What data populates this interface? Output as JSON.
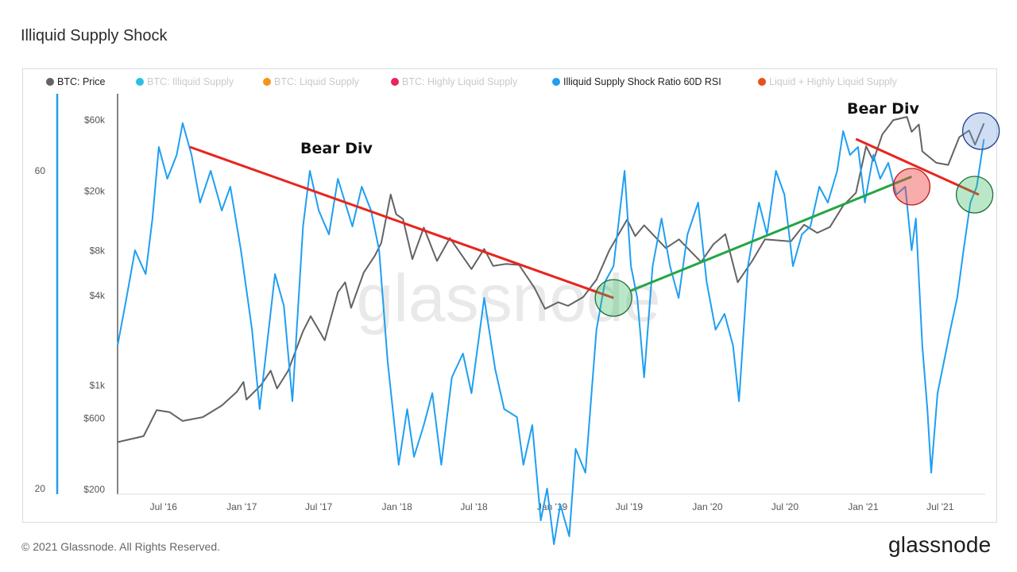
{
  "title": "Illiquid Supply Shock",
  "legend": [
    {
      "label": "BTC: Price",
      "color": "#636363",
      "active": true
    },
    {
      "label": "BTC: Illiquid Supply",
      "color": "#29c0e6",
      "active": false
    },
    {
      "label": "BTC: Liquid Supply",
      "color": "#f7931a",
      "active": false
    },
    {
      "label": "BTC: Highly Liquid Supply",
      "color": "#e8255c",
      "active": false
    },
    {
      "label": "Illiquid Supply Shock Ratio 60D RSI",
      "color": "#1e9ff2",
      "active": true
    },
    {
      "label": "Liquid + Highly Liquid Supply",
      "color": "#e8501b",
      "active": false
    }
  ],
  "watermark": "glassnode",
  "footer": {
    "copyright": "© 2021 Glassnode. All Rights Reserved.",
    "brand": "glassnode"
  },
  "annotations": {
    "bear_div_1": "Bear Div",
    "bear_div_2": "Bear Div"
  },
  "chart_data": {
    "type": "line",
    "x_ticks": [
      "Jul '16",
      "Jan '17",
      "Jul '17",
      "Jan '18",
      "Jul '18",
      "Jan '19",
      "Jul '19",
      "Jan '20",
      "Jul '20",
      "Jan '21",
      "Jul '21"
    ],
    "x_range": [
      "2016-03-15",
      "2021-10-15"
    ],
    "y_left_price": {
      "scale": "log",
      "ticks": [
        {
          "label": "$60k",
          "value": 60000
        },
        {
          "label": "$20k",
          "value": 20000
        },
        {
          "label": "$8k",
          "value": 8000
        },
        {
          "label": "$4k",
          "value": 4000
        },
        {
          "label": "$1k",
          "value": 1000
        },
        {
          "label": "$600",
          "value": 600
        },
        {
          "label": "$200",
          "value": 200
        }
      ],
      "range": [
        200,
        90000
      ]
    },
    "y_left_rsi": {
      "ticks": [
        {
          "label": "60",
          "value": 60
        },
        {
          "label": "20",
          "value": 20
        }
      ]
    },
    "series": [
      {
        "name": "BTC: Price",
        "color": "#636363",
        "axis": "price",
        "points": [
          [
            "2016-03-15",
            415
          ],
          [
            "2016-05-15",
            455
          ],
          [
            "2016-06-15",
            680
          ],
          [
            "2016-07-15",
            660
          ],
          [
            "2016-08-15",
            575
          ],
          [
            "2016-10-01",
            610
          ],
          [
            "2016-11-15",
            730
          ],
          [
            "2016-12-20",
            900
          ],
          [
            "2017-01-05",
            1050
          ],
          [
            "2017-01-12",
            800
          ],
          [
            "2017-02-15",
            1000
          ],
          [
            "2017-03-10",
            1250
          ],
          [
            "2017-03-25",
            950
          ],
          [
            "2017-04-20",
            1250
          ],
          [
            "2017-05-25",
            2300
          ],
          [
            "2017-06-12",
            2900
          ],
          [
            "2017-07-15",
            2000
          ],
          [
            "2017-08-15",
            4200
          ],
          [
            "2017-09-01",
            4900
          ],
          [
            "2017-09-15",
            3300
          ],
          [
            "2017-10-15",
            5700
          ],
          [
            "2017-11-10",
            7400
          ],
          [
            "2017-11-25",
            9000
          ],
          [
            "2017-12-17",
            19000
          ],
          [
            "2017-12-30",
            14000
          ],
          [
            "2018-01-15",
            13000
          ],
          [
            "2018-02-06",
            7000
          ],
          [
            "2018-03-05",
            11400
          ],
          [
            "2018-04-05",
            6800
          ],
          [
            "2018-05-05",
            9700
          ],
          [
            "2018-06-25",
            6000
          ],
          [
            "2018-07-25",
            8200
          ],
          [
            "2018-08-15",
            6300
          ],
          [
            "2018-09-15",
            6500
          ],
          [
            "2018-10-15",
            6400
          ],
          [
            "2018-11-20",
            4500
          ],
          [
            "2018-12-15",
            3250
          ],
          [
            "2019-01-15",
            3600
          ],
          [
            "2019-02-07",
            3400
          ],
          [
            "2019-03-15",
            3900
          ],
          [
            "2019-04-15",
            5100
          ],
          [
            "2019-05-15",
            8000
          ],
          [
            "2019-06-26",
            12900
          ],
          [
            "2019-07-15",
            10000
          ],
          [
            "2019-08-05",
            11800
          ],
          [
            "2019-09-25",
            8300
          ],
          [
            "2019-10-26",
            9500
          ],
          [
            "2019-12-17",
            6700
          ],
          [
            "2020-01-15",
            8800
          ],
          [
            "2020-02-12",
            10300
          ],
          [
            "2020-03-12",
            4900
          ],
          [
            "2020-04-15",
            6800
          ],
          [
            "2020-05-15",
            9500
          ],
          [
            "2020-07-15",
            9200
          ],
          [
            "2020-08-15",
            11900
          ],
          [
            "2020-09-15",
            10500
          ],
          [
            "2020-10-15",
            11500
          ],
          [
            "2020-11-15",
            16000
          ],
          [
            "2020-12-15",
            19500
          ],
          [
            "2021-01-08",
            40000
          ],
          [
            "2021-01-25",
            32000
          ],
          [
            "2021-02-15",
            48000
          ],
          [
            "2021-03-13",
            60000
          ],
          [
            "2021-04-14",
            63000
          ],
          [
            "2021-04-25",
            50000
          ],
          [
            "2021-05-12",
            56000
          ],
          [
            "2021-05-20",
            37000
          ],
          [
            "2021-06-22",
            31000
          ],
          [
            "2021-07-20",
            30000
          ],
          [
            "2021-08-15",
            46000
          ],
          [
            "2021-09-07",
            51000
          ],
          [
            "2021-09-21",
            41000
          ],
          [
            "2021-10-12",
            57000
          ]
        ]
      },
      {
        "name": "Illiquid Supply Shock Ratio 60D RSI",
        "color": "#1e9ff2",
        "axis": "rsi",
        "points": [
          [
            "2016-03-15",
            38
          ],
          [
            "2016-04-05",
            44
          ],
          [
            "2016-04-25",
            50
          ],
          [
            "2016-05-20",
            47
          ],
          [
            "2016-06-05",
            54
          ],
          [
            "2016-06-20",
            63
          ],
          [
            "2016-07-10",
            59
          ],
          [
            "2016-08-01",
            62
          ],
          [
            "2016-08-15",
            66
          ],
          [
            "2016-09-05",
            62
          ],
          [
            "2016-09-25",
            56
          ],
          [
            "2016-10-20",
            60
          ],
          [
            "2016-11-15",
            55
          ],
          [
            "2016-12-05",
            58
          ],
          [
            "2016-12-30",
            50
          ],
          [
            "2017-01-25",
            40
          ],
          [
            "2017-02-12",
            30
          ],
          [
            "2017-03-01",
            38
          ],
          [
            "2017-03-20",
            47
          ],
          [
            "2017-04-10",
            43
          ],
          [
            "2017-04-30",
            31
          ],
          [
            "2017-05-25",
            53
          ],
          [
            "2017-06-10",
            60
          ],
          [
            "2017-07-01",
            55
          ],
          [
            "2017-07-25",
            52
          ],
          [
            "2017-08-15",
            59
          ],
          [
            "2017-09-01",
            56
          ],
          [
            "2017-09-18",
            53
          ],
          [
            "2017-10-10",
            58
          ],
          [
            "2017-11-01",
            55
          ],
          [
            "2017-11-20",
            50
          ],
          [
            "2017-12-10",
            36
          ],
          [
            "2018-01-05",
            23
          ],
          [
            "2018-01-25",
            30
          ],
          [
            "2018-02-10",
            24
          ],
          [
            "2018-03-05",
            28
          ],
          [
            "2018-03-25",
            32
          ],
          [
            "2018-04-15",
            23
          ],
          [
            "2018-05-10",
            34
          ],
          [
            "2018-06-05",
            37
          ],
          [
            "2018-06-25",
            32
          ],
          [
            "2018-07-25",
            44
          ],
          [
            "2018-08-20",
            35
          ],
          [
            "2018-09-10",
            30
          ],
          [
            "2018-10-10",
            29
          ],
          [
            "2018-10-25",
            23
          ],
          [
            "2018-11-15",
            28
          ],
          [
            "2018-12-05",
            16
          ],
          [
            "2018-12-20",
            20
          ],
          [
            "2019-01-05",
            13
          ],
          [
            "2019-01-20",
            18
          ],
          [
            "2019-02-10",
            14
          ],
          [
            "2019-02-25",
            25
          ],
          [
            "2019-03-20",
            22
          ],
          [
            "2019-04-15",
            40
          ],
          [
            "2019-05-05",
            46
          ],
          [
            "2019-05-25",
            48
          ],
          [
            "2019-06-20",
            60
          ],
          [
            "2019-07-05",
            48
          ],
          [
            "2019-07-20",
            44
          ],
          [
            "2019-08-05",
            34
          ],
          [
            "2019-08-25",
            48
          ],
          [
            "2019-09-15",
            54
          ],
          [
            "2019-10-05",
            48
          ],
          [
            "2019-10-25",
            44
          ],
          [
            "2019-11-15",
            52
          ],
          [
            "2019-12-10",
            56
          ],
          [
            "2019-12-30",
            46
          ],
          [
            "2020-01-20",
            40
          ],
          [
            "2020-02-10",
            42
          ],
          [
            "2020-03-01",
            38
          ],
          [
            "2020-03-15",
            31
          ],
          [
            "2020-04-05",
            48
          ],
          [
            "2020-05-01",
            56
          ],
          [
            "2020-05-20",
            52
          ],
          [
            "2020-06-10",
            60
          ],
          [
            "2020-06-30",
            57
          ],
          [
            "2020-07-20",
            48
          ],
          [
            "2020-08-10",
            52
          ],
          [
            "2020-08-30",
            53
          ],
          [
            "2020-09-20",
            58
          ],
          [
            "2020-10-10",
            56
          ],
          [
            "2020-11-01",
            60
          ],
          [
            "2020-11-15",
            65
          ],
          [
            "2020-12-01",
            62
          ],
          [
            "2020-12-20",
            63
          ],
          [
            "2021-01-05",
            56
          ],
          [
            "2021-01-25",
            62
          ],
          [
            "2021-02-10",
            59
          ],
          [
            "2021-03-01",
            61
          ],
          [
            "2021-03-20",
            57
          ],
          [
            "2021-04-10",
            58
          ],
          [
            "2021-04-25",
            50
          ],
          [
            "2021-05-05",
            54
          ],
          [
            "2021-05-20",
            38
          ],
          [
            "2021-06-01",
            30
          ],
          [
            "2021-06-10",
            22
          ],
          [
            "2021-06-25",
            32
          ],
          [
            "2021-07-10",
            36
          ],
          [
            "2021-07-25",
            40
          ],
          [
            "2021-08-10",
            44
          ],
          [
            "2021-08-25",
            50
          ],
          [
            "2021-09-10",
            56
          ],
          [
            "2021-09-25",
            58
          ],
          [
            "2021-10-12",
            64
          ]
        ]
      }
    ],
    "trendlines": [
      {
        "color": "#e8251c",
        "from": [
          "2016-09-01",
          63
        ],
        "to": [
          "2019-05-25",
          44
        ],
        "label": "Bear Div"
      },
      {
        "color": "#e8251c",
        "from": [
          "2020-12-15",
          64
        ],
        "to": [
          "2021-09-30",
          57
        ],
        "label": "Bear Div"
      },
      {
        "color": "#24a545",
        "from": [
          "2019-07-05",
          4300
        ],
        "to": [
          "2021-04-25",
          25000
        ]
      }
    ],
    "highlight_circles": [
      {
        "at": [
          "2019-05-25",
          44
        ],
        "color": "green"
      },
      {
        "at": [
          "2021-04-25",
          58
        ],
        "color": "red"
      },
      {
        "at": [
          "2021-09-20",
          57
        ],
        "color": "green"
      },
      {
        "at": [
          "2021-10-05",
          65
        ],
        "color": "blue"
      }
    ],
    "grid": false,
    "legend_position": "top"
  }
}
